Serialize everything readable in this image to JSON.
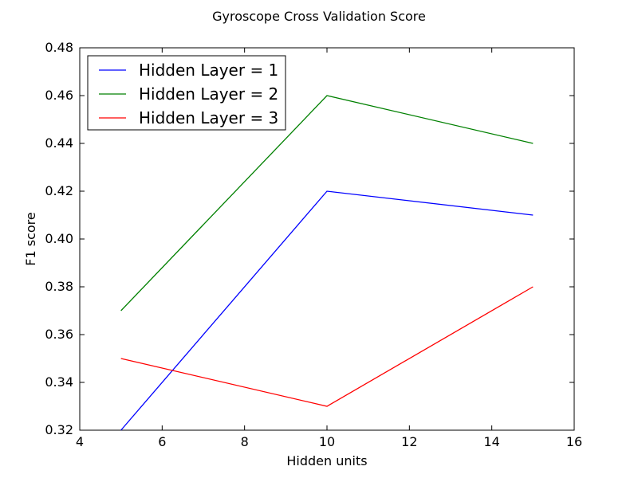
{
  "chart_data": {
    "type": "line",
    "title": "Gyroscope Cross Validation Score",
    "xlabel": "Hidden units",
    "ylabel": "F1 score",
    "xlim": [
      4,
      16
    ],
    "ylim": [
      0.32,
      0.48
    ],
    "x_ticks": [
      4,
      6,
      8,
      10,
      12,
      14,
      16
    ],
    "y_ticks": [
      0.32,
      0.34,
      0.36,
      0.38,
      0.4,
      0.42,
      0.44,
      0.46,
      0.48
    ],
    "x_tick_labels": [
      "4",
      "6",
      "8",
      "10",
      "12",
      "14",
      "16"
    ],
    "y_tick_labels": [
      "0.32",
      "0.34",
      "0.36",
      "0.38",
      "0.40",
      "0.42",
      "0.44",
      "0.46",
      "0.48"
    ],
    "grid": false,
    "legend_position": "upper-left",
    "series": [
      {
        "name": "Hidden Layer = 1",
        "color": "#0000ff",
        "x": [
          5,
          10,
          15
        ],
        "y": [
          0.32,
          0.42,
          0.41
        ]
      },
      {
        "name": "Hidden Layer = 2",
        "color": "#008000",
        "x": [
          5,
          10,
          15
        ],
        "y": [
          0.37,
          0.46,
          0.44
        ]
      },
      {
        "name": "Hidden Layer = 3",
        "color": "#ff0000",
        "x": [
          5,
          10,
          15
        ],
        "y": [
          0.35,
          0.33,
          0.38
        ]
      }
    ]
  }
}
